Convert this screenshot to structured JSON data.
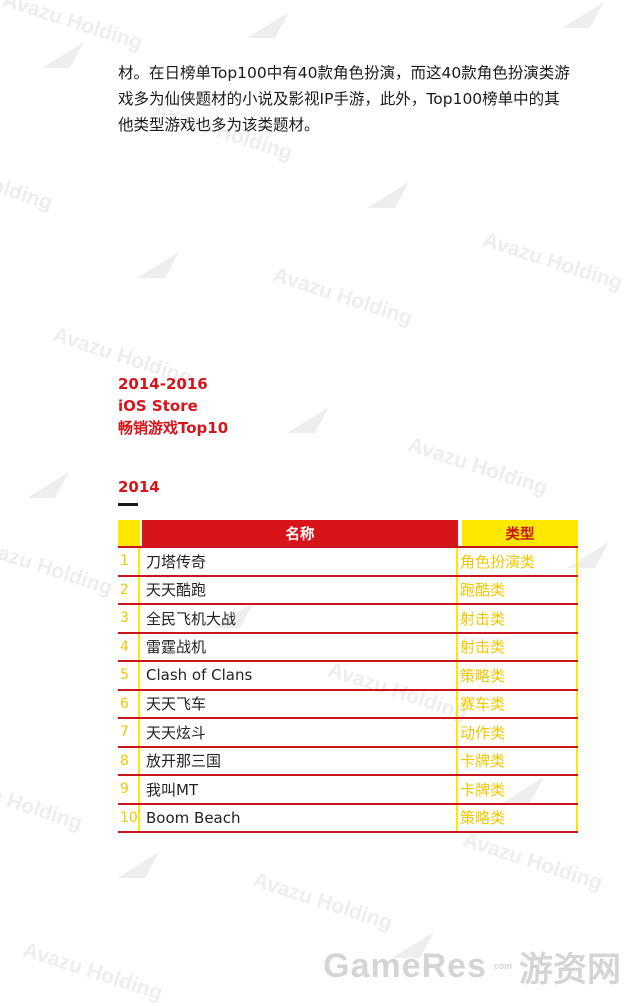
{
  "intro": {
    "lines": [
      "材。在日榜单Top100中有40款角色扮演，而这40款角色扮演类游",
      "戏多为仙侠题材的小说及影视IP手游，此外，Top100榜单中的其",
      "他类型游戏也多为该类题材。"
    ]
  },
  "section": {
    "title_lines": [
      "2014-2016",
      "iOS Store",
      "畅销游戏Top10"
    ]
  },
  "year": "2014",
  "table": {
    "headers": {
      "name": "名称",
      "type": "类型"
    },
    "rows": [
      {
        "num": "1",
        "name": "刀塔传奇",
        "type": "角色扮演类"
      },
      {
        "num": "2",
        "name": "天天酷跑",
        "type": "跑酷类"
      },
      {
        "num": "3",
        "name": "全民飞机大战",
        "type": "射击类"
      },
      {
        "num": "4",
        "name": "雷霆战机",
        "type": "射击类"
      },
      {
        "num": "5",
        "name": "Clash of Clans",
        "type": "策略类"
      },
      {
        "num": "6",
        "name": "天天飞车",
        "type": "赛车类"
      },
      {
        "num": "7",
        "name": "天天炫斗",
        "type": "动作类"
      },
      {
        "num": "8",
        "name": "放开那三国",
        "type": "卡牌类"
      },
      {
        "num": "9",
        "name": "我叫MT",
        "type": "卡牌类"
      },
      {
        "num": "10",
        "name": "Boom Beach",
        "type": "策略类"
      }
    ]
  },
  "watermark": {
    "text": "Avazu Holding",
    "logo_icon": "avazu-triangle-logo-icon"
  },
  "site_mark": {
    "brand": "GameRes",
    "tld": "com",
    "cn": "游资网"
  },
  "colors": {
    "accent_red": "#d7141a",
    "accent_yellow": "#ffe800",
    "watermark_gray": "#eeeeee"
  }
}
